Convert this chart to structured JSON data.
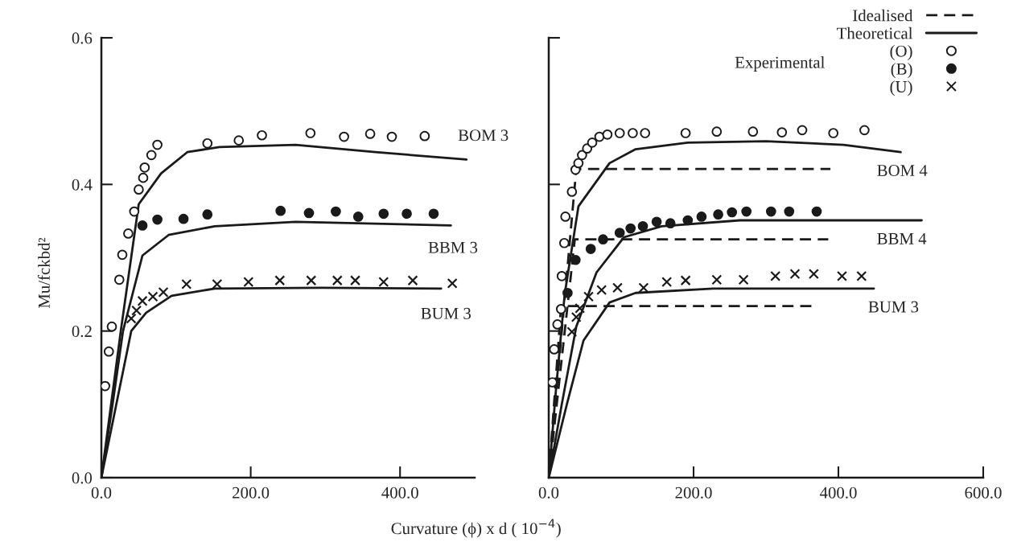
{
  "chart_data": [
    {
      "type": "scatter",
      "xlabel": "Curvature (ϕ) x d ( 10$^{−4}$)",
      "ylabel": "Mu/fckbd²",
      "xlim": [
        0,
        500
      ],
      "ylim": [
        0,
        0.6
      ],
      "xticks": [
        {
          "value": 0,
          "label": "0.0"
        },
        {
          "value": 200,
          "label": "200.0"
        },
        {
          "value": 400,
          "label": "400.0"
        }
      ],
      "yticks": [
        {
          "value": 0,
          "label": "0.0"
        },
        {
          "value": 0.2,
          "label": "0.2"
        },
        {
          "value": 0.4,
          "label": "0.4"
        },
        {
          "value": 0.6,
          "label": "0.6"
        }
      ],
      "grid": false,
      "legend": false,
      "series": [
        {
          "marker": "circle",
          "color": "#ffffff",
          "x": [
            5,
            10,
            14,
            24,
            28,
            36,
            44,
            50,
            56,
            58,
            67,
            75,
            142,
            184,
            215,
            280,
            325,
            360,
            389,
            433
          ],
          "values": [
            0.125,
            0.172,
            0.206,
            0.27,
            0.304,
            0.333,
            0.363,
            0.393,
            0.409,
            0.423,
            0.44,
            0.454,
            0.456,
            0.46,
            0.467,
            0.47,
            0.465,
            0.469,
            0.465,
            0.466
          ]
        },
        {
          "marker": "circle",
          "color": "#1a1a1a",
          "x": [
            55,
            75,
            110,
            142,
            240,
            278,
            314,
            344,
            378,
            409,
            445
          ],
          "values": [
            0.344,
            0.352,
            0.353,
            0.359,
            0.364,
            0.361,
            0.363,
            0.356,
            0.36,
            0.36,
            0.36
          ]
        },
        {
          "marker": "cross",
          "color": "#1a1a1a",
          "x": [
            40,
            47,
            55,
            69,
            83,
            114,
            155,
            197,
            239,
            281,
            316,
            340,
            378,
            417,
            470
          ],
          "values": [
            0.217,
            0.228,
            0.241,
            0.247,
            0.253,
            0.264,
            0.264,
            0.267,
            0.269,
            0.269,
            0.269,
            0.269,
            0.267,
            0.269,
            0.265
          ]
        },
        {
          "type": "line",
          "line_style": "solid",
          "color": "#1a1a1a",
          "x": [
            0,
            13,
            26,
            50,
            80,
            115,
            158,
            260,
            367,
            489
          ],
          "values": [
            0,
            0.1,
            0.2,
            0.373,
            0.415,
            0.444,
            0.451,
            0.454,
            0.444,
            0.434
          ]
        },
        {
          "type": "line",
          "line_style": "solid",
          "color": "#1a1a1a",
          "x": [
            0,
            15,
            29,
            55,
            90,
            152,
            260,
            468
          ],
          "values": [
            0,
            0.1,
            0.2,
            0.303,
            0.331,
            0.343,
            0.349,
            0.344
          ]
        },
        {
          "type": "line",
          "line_style": "solid",
          "color": "#1a1a1a",
          "x": [
            0,
            20,
            40,
            60,
            94,
            152,
            295,
            455
          ],
          "values": [
            0,
            0.1,
            0.2,
            0.225,
            0.248,
            0.258,
            0.259,
            0.258
          ]
        }
      ],
      "annotations": [
        "BOM 3",
        "BBM 3",
        "BUM 3"
      ]
    },
    {
      "type": "scatter",
      "xlim": [
        0,
        600
      ],
      "ylim": [
        0,
        0.6
      ],
      "xticks": [
        {
          "value": 0,
          "label": "0.0"
        },
        {
          "value": 200,
          "label": "200.0"
        },
        {
          "value": 400,
          "label": "400.0"
        },
        {
          "value": 600,
          "label": "600.0"
        }
      ],
      "yticks": [
        0,
        0.2,
        0.4,
        0.6
      ],
      "tick_labels": "x",
      "grid": false,
      "legend": "top right",
      "series": [
        {
          "type": "line",
          "name": "Idealised",
          "line_style": "dashed",
          "color": "#1a1a1a",
          "x": [
            0,
            38,
            389
          ],
          "values": [
            0,
            0.421,
            0.421
          ]
        },
        {
          "type": "line",
          "line_style": "dashed",
          "color": "#1a1a1a",
          "x": [
            0,
            36,
            386
          ],
          "values": [
            0,
            0.325,
            0.325
          ]
        },
        {
          "type": "line",
          "line_style": "dashed",
          "color": "#1a1a1a",
          "x": [
            0,
            17,
            367
          ],
          "values": [
            0,
            0.234,
            0.234
          ]
        },
        {
          "type": "line",
          "name": "Theoretical",
          "line_style": "solid",
          "color": "#1a1a1a",
          "x": [
            0,
            10,
            22,
            41,
            84,
            120,
            192,
            300,
            407,
            486
          ],
          "values": [
            0,
            0.12,
            0.25,
            0.37,
            0.429,
            0.448,
            0.457,
            0.459,
            0.454,
            0.444
          ]
        },
        {
          "type": "line",
          "line_style": "solid",
          "color": "#1a1a1a",
          "x": [
            0,
            18,
            38,
            66,
            104,
            156,
            264,
            515
          ],
          "values": [
            0,
            0.1,
            0.206,
            0.28,
            0.328,
            0.343,
            0.351,
            0.351
          ]
        },
        {
          "type": "line",
          "line_style": "solid",
          "color": "#1a1a1a",
          "x": [
            0,
            25,
            48,
            84,
            120,
            227,
            449
          ],
          "values": [
            0,
            0.1,
            0.187,
            0.239,
            0.252,
            0.258,
            0.258
          ]
        },
        {
          "name": "(O)",
          "marker": "circle",
          "color": "#ffffff",
          "x": [
            5,
            7.5,
            12,
            17,
            18,
            21.5,
            23,
            32,
            37,
            41,
            46,
            53,
            60,
            70,
            81,
            98,
            116,
            133,
            189,
            232,
            282,
            322,
            350,
            393,
            436
          ],
          "values": [
            0.13,
            0.175,
            0.209,
            0.23,
            0.275,
            0.32,
            0.356,
            0.39,
            0.42,
            0.429,
            0.44,
            0.449,
            0.457,
            0.465,
            0.468,
            0.47,
            0.47,
            0.47,
            0.47,
            0.472,
            0.472,
            0.471,
            0.474,
            0.47,
            0.474
          ]
        },
        {
          "name": "(B)",
          "marker": "circle",
          "color": "#1a1a1a",
          "x": [
            26,
            37,
            58,
            75,
            98,
            113,
            130,
            149,
            168,
            192,
            211,
            234,
            253,
            273,
            307,
            332,
            370
          ],
          "values": [
            0.252,
            0.297,
            0.312,
            0.325,
            0.334,
            0.34,
            0.343,
            0.349,
            0.347,
            0.351,
            0.356,
            0.359,
            0.362,
            0.363,
            0.363,
            0.363,
            0.363
          ]
        },
        {
          "name": "(U)",
          "marker": "cross",
          "color": "#1a1a1a",
          "x": [
            32,
            38,
            43,
            55,
            73,
            95,
            131,
            163,
            189,
            232,
            269,
            313,
            340,
            366,
            405,
            432
          ],
          "values": [
            0.199,
            0.219,
            0.231,
            0.247,
            0.256,
            0.259,
            0.259,
            0.267,
            0.269,
            0.27,
            0.27,
            0.275,
            0.278,
            0.278,
            0.275,
            0.275
          ]
        }
      ],
      "annotations": [
        "Experimental",
        "BOM 4",
        "BBM 4",
        "BUM 3"
      ]
    }
  ]
}
